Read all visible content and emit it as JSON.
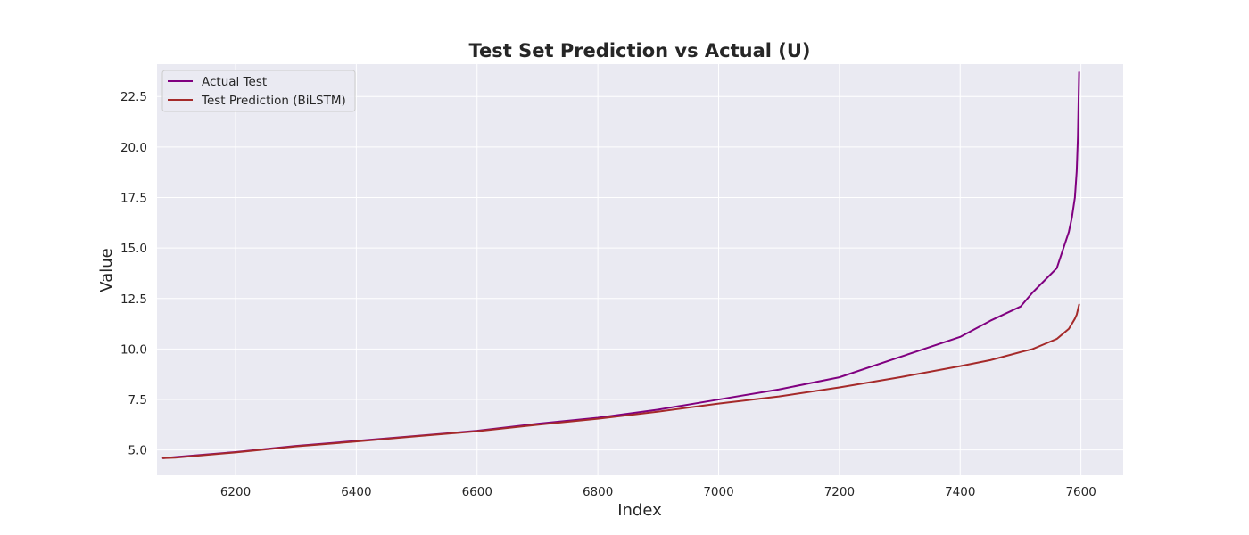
{
  "chart_data": {
    "type": "line",
    "title": "Test Set Prediction vs Actual (U)",
    "xlabel": "Index",
    "ylabel": "Value",
    "xlim": [
      6070,
      7670
    ],
    "ylim": [
      3.75,
      24.1
    ],
    "xticks": [
      6200,
      6400,
      6600,
      6800,
      7000,
      7200,
      7400,
      7600
    ],
    "xtick_labels": [
      "6200",
      "6400",
      "6600",
      "6800",
      "7000",
      "7200",
      "7400",
      "7600"
    ],
    "yticks": [
      5.0,
      7.5,
      10.0,
      12.5,
      15.0,
      17.5,
      20.0,
      22.5
    ],
    "ytick_labels": [
      "5.0",
      "7.5",
      "10.0",
      "12.5",
      "15.0",
      "17.5",
      "20.0",
      "22.5"
    ],
    "grid": true,
    "legend": "top-left",
    "series": [
      {
        "name": "Actual Test",
        "color": "#800080",
        "x": [
          6080,
          6100,
          6200,
          6300,
          6400,
          6500,
          6600,
          6700,
          6800,
          6900,
          7000,
          7100,
          7200,
          7300,
          7400,
          7450,
          7500,
          7520,
          7540,
          7560,
          7570,
          7580,
          7585,
          7590,
          7593,
          7595,
          7597
        ],
        "y": [
          4.6,
          4.65,
          4.9,
          5.2,
          5.45,
          5.7,
          5.95,
          6.3,
          6.6,
          7.0,
          7.5,
          8.0,
          8.6,
          9.6,
          10.6,
          11.4,
          12.1,
          12.8,
          13.4,
          14.0,
          14.9,
          15.8,
          16.5,
          17.5,
          18.8,
          20.5,
          23.7
        ]
      },
      {
        "name": "Test Prediction (BiLSTM)",
        "color": "#a52a2a",
        "x": [
          6080,
          6100,
          6200,
          6300,
          6400,
          6500,
          6600,
          6700,
          6800,
          6900,
          7000,
          7100,
          7200,
          7300,
          7400,
          7450,
          7500,
          7520,
          7540,
          7560,
          7570,
          7580,
          7585,
          7590,
          7593,
          7595,
          7597
        ],
        "y": [
          4.6,
          4.62,
          4.88,
          5.18,
          5.42,
          5.68,
          5.93,
          6.25,
          6.55,
          6.9,
          7.3,
          7.65,
          8.1,
          8.6,
          9.15,
          9.45,
          9.85,
          10.0,
          10.25,
          10.5,
          10.75,
          11.0,
          11.25,
          11.5,
          11.7,
          11.95,
          12.2
        ]
      }
    ]
  }
}
